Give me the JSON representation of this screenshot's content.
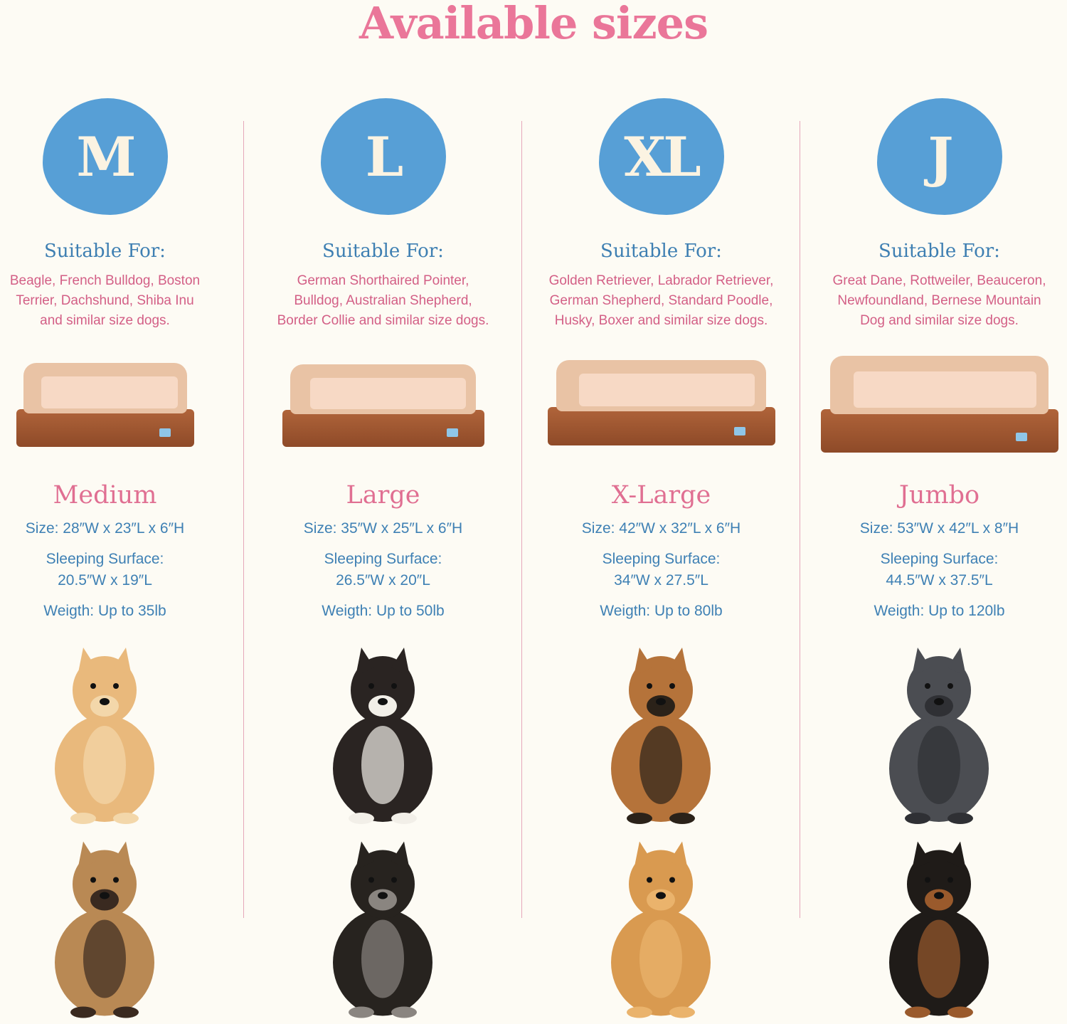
{
  "title": "Available sizes",
  "colors": {
    "background": "#fdfbf4",
    "title": "#ea7699",
    "badge": "#579fd6",
    "spec_text": "#3e80b4",
    "breed_text": "#d35f86",
    "divider": "#e6a7ba",
    "bed_base": "#a0552f",
    "bed_top": "#f7d9c5"
  },
  "columns": [
    {
      "badge": "M",
      "suitable_label": "Suitable For:",
      "breeds": [
        "Beagle, French Bulldog, Boston",
        "Terrier, Dachshund, Shiba Inu",
        "and similar size dogs."
      ],
      "name": "Medium",
      "size": "Size: 28″W x 23″L x 6″H",
      "surface_label": "Sleeping Surface:",
      "surface": "20.5″W x 19″L",
      "weight": "Weigth: Up to 35lb",
      "dogs": [
        "pomeranian",
        "french-bulldog"
      ]
    },
    {
      "badge": "L",
      "suitable_label": "Suitable For:",
      "breeds": [
        "German Shorthaired Pointer,",
        "Bulldog, Australian Shepherd,",
        "Border Collie and similar size dogs."
      ],
      "name": "Large",
      "size": "Size: 35″W x 25″L x 6″H",
      "surface_label": "Sleeping Surface:",
      "surface": "26.5″W x 20″L",
      "weight": "Weigth: Up to 50lb",
      "dogs": [
        "australian-shepherd",
        "german-shorthaired-pointer"
      ]
    },
    {
      "badge": "XL",
      "suitable_label": "Suitable For:",
      "breeds": [
        "Golden Retriever, Labrador Retriever,",
        "German Shepherd, Standard Poodle,",
        "Husky, Boxer and similar size dogs."
      ],
      "name": "X-Large",
      "size": "Size: 42″W x 32″L x 6″H",
      "surface_label": "Sleeping Surface:",
      "surface": "34″W x 27.5″L",
      "weight": "Weigth: Up to 80lb",
      "dogs": [
        "german-shepherd",
        "golden-retriever"
      ]
    },
    {
      "badge": "J",
      "suitable_label": "Suitable For:",
      "breeds": [
        "Great Dane, Rottweiler, Beauceron,",
        "Newfoundland, Bernese Mountain",
        "Dog and similar size dogs."
      ],
      "name": "Jumbo",
      "size": "Size: 53″W x 42″L x 8″H",
      "surface_label": "Sleeping Surface:",
      "surface": "44.5″W x 37.5″L",
      "weight": "Weigth: Up to 120lb",
      "dogs": [
        "great-dane",
        "rottweiler"
      ]
    }
  ]
}
